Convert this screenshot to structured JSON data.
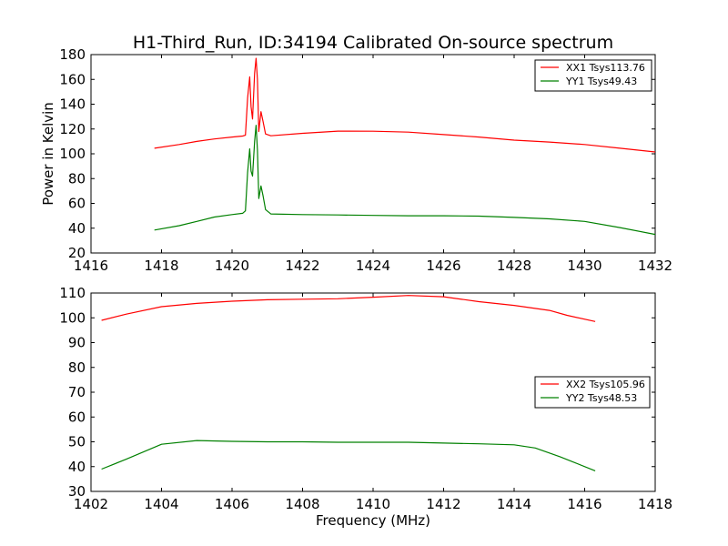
{
  "figure": {
    "title": "H1-Third_Run, ID:34194 Calibrated On-source spectrum",
    "xlabel": "Frequency (MHz)",
    "ylabel": "Power in Kelvin"
  },
  "colors": {
    "xx": "#ff0000",
    "yy": "#008000",
    "axes": "#000000",
    "background": "#ffffff"
  },
  "chart_data": [
    {
      "type": "line",
      "title": "H1-Third_Run, ID:34194 Calibrated On-source spectrum",
      "xlabel": "",
      "ylabel": "Power in Kelvin",
      "xlim": [
        1416,
        1432
      ],
      "ylim": [
        20,
        180
      ],
      "xticks": [
        "1416",
        "1418",
        "1420",
        "1422",
        "1424",
        "1426",
        "1428",
        "1430",
        "1432"
      ],
      "yticks": [
        "20",
        "40",
        "60",
        "80",
        "100",
        "120",
        "140",
        "160",
        "180"
      ],
      "legend": "top-right",
      "series": [
        {
          "name": "XX1 Tsys113.76",
          "color": "#ff0000",
          "points": [
            [
              1417.8,
              104.5
            ],
            [
              1418.5,
              107.5
            ],
            [
              1419.0,
              110.0
            ],
            [
              1419.5,
              112.0
            ],
            [
              1420.0,
              113.5
            ],
            [
              1420.3,
              114.3
            ],
            [
              1420.38,
              115
            ],
            [
              1420.44,
              145
            ],
            [
              1420.5,
              162
            ],
            [
              1420.54,
              138
            ],
            [
              1420.58,
              128
            ],
            [
              1420.64,
              165
            ],
            [
              1420.68,
              177
            ],
            [
              1420.72,
              160
            ],
            [
              1420.76,
              118
            ],
            [
              1420.82,
              134
            ],
            [
              1420.88,
              126
            ],
            [
              1420.95,
              116
            ],
            [
              1421.1,
              114.5
            ],
            [
              1422.0,
              116.5
            ],
            [
              1423.0,
              118.3
            ],
            [
              1424.0,
              118.2
            ],
            [
              1425.0,
              117.5
            ],
            [
              1426.0,
              115.5
            ],
            [
              1427.0,
              113.5
            ],
            [
              1428.0,
              111.0
            ],
            [
              1429.0,
              109.5
            ],
            [
              1430.0,
              107.5
            ],
            [
              1431.0,
              104.5
            ],
            [
              1432.0,
              101.5
            ]
          ]
        },
        {
          "name": "YY1 Tsys49.43",
          "color": "#008000",
          "points": [
            [
              1417.8,
              38.5
            ],
            [
              1418.5,
              42.0
            ],
            [
              1419.0,
              45.5
            ],
            [
              1419.5,
              49.0
            ],
            [
              1420.0,
              51.0
            ],
            [
              1420.3,
              52.0
            ],
            [
              1420.38,
              54
            ],
            [
              1420.44,
              85
            ],
            [
              1420.5,
              104
            ],
            [
              1420.54,
              86
            ],
            [
              1420.58,
              82
            ],
            [
              1420.64,
              110
            ],
            [
              1420.68,
              123
            ],
            [
              1420.72,
              103
            ],
            [
              1420.76,
              64
            ],
            [
              1420.82,
              74
            ],
            [
              1420.88,
              66
            ],
            [
              1420.95,
              55
            ],
            [
              1421.1,
              51.5
            ],
            [
              1422.0,
              51.0
            ],
            [
              1423.0,
              50.7
            ],
            [
              1424.0,
              50.3
            ],
            [
              1425.0,
              50.0
            ],
            [
              1426.0,
              50.0
            ],
            [
              1427.0,
              49.7
            ],
            [
              1428.0,
              48.7
            ],
            [
              1429.0,
              47.5
            ],
            [
              1430.0,
              45.5
            ],
            [
              1431.0,
              40.5
            ],
            [
              1432.0,
              35.0
            ]
          ]
        }
      ]
    },
    {
      "type": "line",
      "title": "",
      "xlabel": "Frequency (MHz)",
      "ylabel": "",
      "xlim": [
        1402,
        1418
      ],
      "ylim": [
        30,
        110
      ],
      "xticks": [
        "1402",
        "1404",
        "1406",
        "1408",
        "1410",
        "1412",
        "1414",
        "1416",
        "1418"
      ],
      "yticks": [
        "30",
        "40",
        "50",
        "60",
        "70",
        "80",
        "90",
        "100",
        "110"
      ],
      "legend": "center-right",
      "series": [
        {
          "name": "XX2 Tsys105.96",
          "color": "#ff0000",
          "points": [
            [
              1402.3,
              99.0
            ],
            [
              1403.0,
              101.5
            ],
            [
              1404.0,
              104.5
            ],
            [
              1405.0,
              105.8
            ],
            [
              1406.0,
              106.7
            ],
            [
              1407.0,
              107.3
            ],
            [
              1408.0,
              107.5
            ],
            [
              1409.0,
              107.7
            ],
            [
              1410.0,
              108.3
            ],
            [
              1411.0,
              109.0
            ],
            [
              1412.0,
              108.5
            ],
            [
              1413.0,
              106.5
            ],
            [
              1414.0,
              105.0
            ],
            [
              1415.0,
              103.0
            ],
            [
              1415.5,
              101.0
            ],
            [
              1416.3,
              98.5
            ]
          ]
        },
        {
          "name": "YY2 Tsys48.53",
          "color": "#008000",
          "points": [
            [
              1402.3,
              39.0
            ],
            [
              1403.0,
              43.0
            ],
            [
              1404.0,
              49.0
            ],
            [
              1405.0,
              50.5
            ],
            [
              1406.0,
              50.2
            ],
            [
              1407.0,
              50.0
            ],
            [
              1408.0,
              50.0
            ],
            [
              1409.0,
              49.8
            ],
            [
              1410.0,
              49.8
            ],
            [
              1411.0,
              49.8
            ],
            [
              1412.0,
              49.5
            ],
            [
              1413.0,
              49.2
            ],
            [
              1414.0,
              48.8
            ],
            [
              1414.6,
              47.5
            ],
            [
              1415.3,
              44.0
            ],
            [
              1416.3,
              38.3
            ]
          ]
        }
      ]
    }
  ]
}
